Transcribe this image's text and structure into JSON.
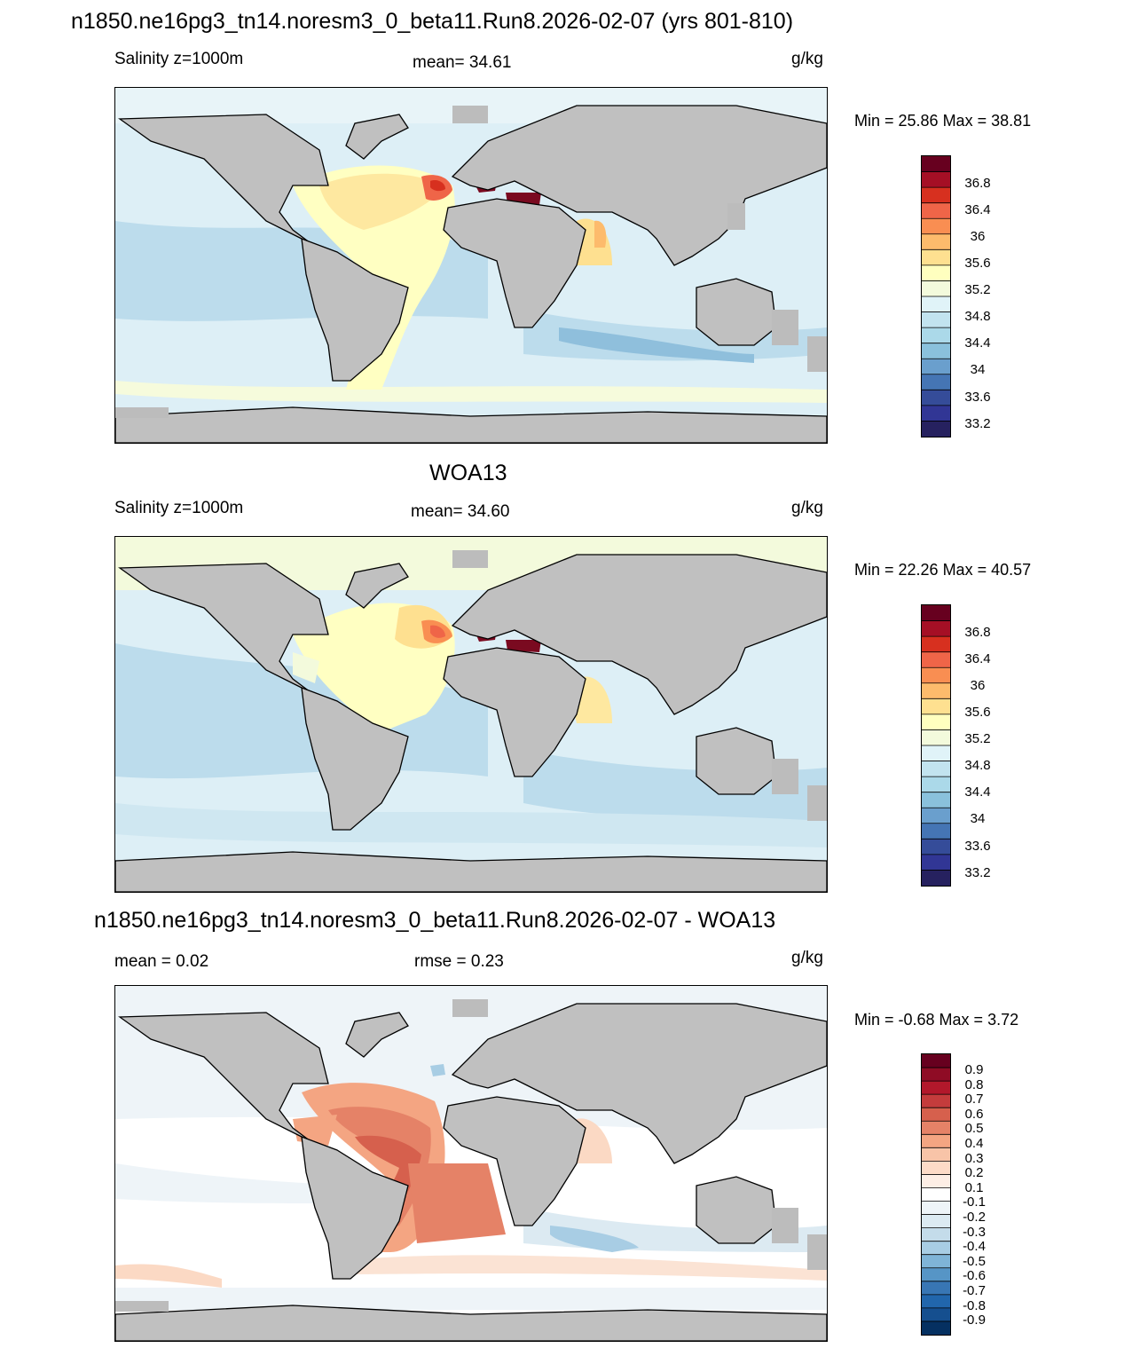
{
  "panels": [
    {
      "title": "n1850.ne16pg3_tn14.noresm3_0_beta11.Run8.2026-02-07 (yrs 801-810)",
      "left_label": "Salinity z=1000m",
      "center_label": "mean=  34.61",
      "units": "g/kg",
      "minmax": "Min =  25.86 Max =  38.81",
      "colorbar_labels": [
        "36.8",
        "36.4",
        "36",
        "35.6",
        "35.2",
        "34.8",
        "34.4",
        "34",
        "33.6",
        "33.2"
      ],
      "colorbar_colors": [
        "#67001f",
        "#a50f25",
        "#d7301f",
        "#ef6548",
        "#f98e52",
        "#fdbb6c",
        "#fee090",
        "#ffffbf",
        "#f3fadc",
        "#e0f3f8",
        "#c2e3ef",
        "#abd9e9",
        "#8ac1dc",
        "#6a9fcd",
        "#4575b4",
        "#354c99",
        "#313695",
        "#26215f"
      ]
    },
    {
      "title": "WOA13",
      "left_label": "Salinity z=1000m",
      "center_label": "mean=  34.60",
      "units": "g/kg",
      "minmax": "Min =  22.26 Max =  40.57",
      "colorbar_labels": [
        "36.8",
        "36.4",
        "36",
        "35.6",
        "35.2",
        "34.8",
        "34.4",
        "34",
        "33.6",
        "33.2"
      ],
      "colorbar_colors": [
        "#67001f",
        "#a50f25",
        "#d7301f",
        "#ef6548",
        "#f98e52",
        "#fdbb6c",
        "#fee090",
        "#ffffbf",
        "#f3fadc",
        "#e0f3f8",
        "#c2e3ef",
        "#abd9e9",
        "#8ac1dc",
        "#6a9fcd",
        "#4575b4",
        "#354c99",
        "#313695",
        "#26215f"
      ]
    },
    {
      "title": "n1850.ne16pg3_tn14.noresm3_0_beta11.Run8.2026-02-07 - WOA13",
      "left_label": "mean =   0.02",
      "center_label": "rmse =   0.23",
      "units": "g/kg",
      "minmax": "Min =  -0.68 Max =   3.72",
      "colorbar_labels": [
        "0.9",
        "0.8",
        "0.7",
        "0.6",
        "0.5",
        "0.4",
        "0.3",
        "0.2",
        "0.1",
        "-0.1",
        "-0.2",
        "-0.3",
        "-0.4",
        "-0.5",
        "-0.6",
        "-0.7",
        "-0.8",
        "-0.9"
      ],
      "colorbar_colors": [
        "#67001f",
        "#8f0c25",
        "#b2182b",
        "#c43c3c",
        "#d6604d",
        "#e58267",
        "#f4a582",
        "#f8c4a8",
        "#fddbc7",
        "#fdeee5",
        "#ffffff",
        "#eef4f8",
        "#dceaf2",
        "#c4dcea",
        "#a8cde4",
        "#7fb4d7",
        "#5695c6",
        "#3876b4",
        "#2166ac",
        "#154f8f",
        "#053061"
      ]
    }
  ],
  "colors": {
    "land": "#c0c0c0",
    "missing": "#bcbcbc"
  }
}
